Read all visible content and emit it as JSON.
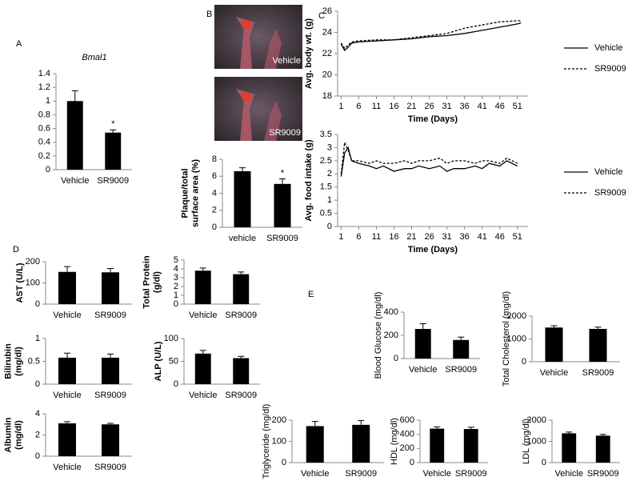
{
  "chart_data": [
    {
      "type": "bar",
      "panel": "A",
      "title": "Bmal1",
      "categories": [
        "Vehicle",
        "SR9009"
      ],
      "values": [
        1.0,
        0.54
      ],
      "errors": [
        0.15,
        0.04
      ],
      "significance": [
        null,
        "*"
      ],
      "color": "#000000",
      "ylim": [
        0,
        1.4
      ],
      "yticks": [
        0,
        0.2,
        0.4,
        0.6,
        0.8,
        1,
        1.2,
        1.4
      ]
    },
    {
      "type": "bar",
      "panel": "B",
      "image_labels": [
        "Vehicle",
        "SR9009"
      ],
      "ylabel": [
        "Plaque/total",
        "surface area (%)"
      ],
      "categories": [
        "vehicle",
        "SR9009"
      ],
      "values": [
        6.6,
        5.1
      ],
      "errors": [
        0.4,
        0.6
      ],
      "significance": [
        null,
        "*"
      ],
      "color": "#000000",
      "ylim": [
        0,
        8
      ],
      "yticks": [
        0,
        2,
        4,
        6,
        8
      ]
    },
    {
      "type": "line",
      "panel": "C",
      "ylabel": "Avg. body wt. (g)",
      "xlabel": "Time (Days)",
      "x": [
        1,
        2,
        3,
        4,
        6,
        11,
        16,
        21,
        26,
        31,
        36,
        41,
        46,
        51,
        52
      ],
      "xlim": [
        0,
        54
      ],
      "xticks": [
        1,
        6,
        11,
        16,
        21,
        26,
        31,
        36,
        41,
        46,
        51
      ],
      "ylim": [
        18,
        26
      ],
      "yticks": [
        18,
        20,
        22,
        24,
        26
      ],
      "series": [
        {
          "name": "Vehicle",
          "color": "#000000",
          "dash": false,
          "values": [
            22.9,
            22.3,
            22.6,
            23.0,
            23.1,
            23.2,
            23.3,
            23.4,
            23.6,
            23.7,
            23.9,
            24.2,
            24.5,
            24.8,
            24.9
          ]
        },
        {
          "name": "SR9009",
          "color": "#000000",
          "dash": true,
          "values": [
            23.0,
            22.5,
            22.8,
            23.1,
            23.2,
            23.3,
            23.3,
            23.5,
            23.7,
            23.9,
            24.4,
            24.7,
            25.0,
            25.1,
            25.1
          ]
        }
      ]
    },
    {
      "type": "line",
      "ylabel": "Avg. food intake (g)",
      "xlabel": "Time (Days)",
      "x": [
        1,
        2,
        3,
        4,
        6,
        9,
        11,
        13,
        16,
        19,
        21,
        23,
        26,
        29,
        31,
        33,
        36,
        39,
        41,
        43,
        46,
        48,
        51
      ],
      "xlim": [
        0,
        54
      ],
      "xticks": [
        1,
        6,
        11,
        16,
        21,
        26,
        31,
        36,
        41,
        46,
        51
      ],
      "ylim": [
        0,
        3.5
      ],
      "yticks": [
        0,
        0.5,
        1,
        1.5,
        2,
        2.5,
        3,
        3.5
      ],
      "series": [
        {
          "name": "Vehicle",
          "color": "#000000",
          "dash": false,
          "values": [
            1.9,
            2.8,
            3.0,
            2.5,
            2.4,
            2.3,
            2.2,
            2.3,
            2.1,
            2.2,
            2.2,
            2.3,
            2.2,
            2.3,
            2.1,
            2.2,
            2.2,
            2.3,
            2.2,
            2.4,
            2.3,
            2.5,
            2.3
          ]
        },
        {
          "name": "SR9009",
          "color": "#000000",
          "dash": true,
          "values": [
            2.0,
            3.2,
            2.9,
            2.5,
            2.5,
            2.4,
            2.5,
            2.4,
            2.4,
            2.5,
            2.4,
            2.5,
            2.5,
            2.6,
            2.4,
            2.5,
            2.5,
            2.4,
            2.5,
            2.5,
            2.4,
            2.6,
            2.4
          ]
        }
      ]
    },
    {
      "type": "bar",
      "panel": "D",
      "ylabel": "AST (U/L)",
      "categories": [
        "Vehicle",
        "SR9009"
      ],
      "values": [
        152,
        150
      ],
      "errors": [
        25,
        18
      ],
      "color": "#000000",
      "ylim": [
        0,
        200
      ],
      "yticks": [
        0,
        100,
        200
      ]
    },
    {
      "type": "bar",
      "ylabel": [
        "Total Protein",
        "(g/dl)"
      ],
      "categories": [
        "Vehicle",
        "SR9009"
      ],
      "values": [
        3.8,
        3.4
      ],
      "errors": [
        0.3,
        0.25
      ],
      "color": "#000000",
      "ylim": [
        0,
        5
      ],
      "yticks": [
        0,
        1,
        2,
        3,
        4,
        5
      ]
    },
    {
      "type": "bar",
      "ylabel": [
        "Bilirubin",
        "(mg/dl)"
      ],
      "categories": [
        "Vehicle",
        "SR9009"
      ],
      "values": [
        0.58,
        0.58
      ],
      "errors": [
        0.1,
        0.08
      ],
      "color": "#000000",
      "ylim": [
        0,
        1
      ],
      "yticks": [
        0,
        0.5,
        1
      ]
    },
    {
      "type": "bar",
      "ylabel": "ALP (U/L)",
      "categories": [
        "Vehicle",
        "SR9009"
      ],
      "values": [
        67,
        57
      ],
      "errors": [
        7,
        4
      ],
      "color": "#000000",
      "ylim": [
        0,
        100
      ],
      "yticks": [
        0,
        50,
        100
      ]
    },
    {
      "type": "bar",
      "ylabel": [
        "Albumin",
        "(mg/dl)"
      ],
      "categories": [
        "Vehicle",
        "SR9009"
      ],
      "values": [
        3.1,
        3.0
      ],
      "errors": [
        0.15,
        0.1
      ],
      "color": "#000000",
      "ylim": [
        0,
        4
      ],
      "yticks": [
        0,
        2,
        4
      ]
    },
    {
      "type": "bar",
      "panel": "E",
      "ylabel": "Blood Glucose (mg/dl)",
      "categories": [
        "Vehicle",
        "SR9009"
      ],
      "values": [
        255,
        160
      ],
      "errors": [
        45,
        25
      ],
      "color": "#000000",
      "ylim": [
        0,
        400
      ],
      "yticks": [
        0,
        200,
        400
      ]
    },
    {
      "type": "bar",
      "ylabel": "Total Cholesterol (mg/dl)",
      "categories": [
        "Vehicle",
        "SR9009"
      ],
      "values": [
        1500,
        1440
      ],
      "errors": [
        80,
        80
      ],
      "color": "#000000",
      "ylim": [
        0,
        2000
      ],
      "yticks": [
        0,
        1000,
        2000
      ]
    },
    {
      "type": "bar",
      "ylabel": "Triglyceride (mg/dl)",
      "categories": [
        "Vehicle",
        "SR9009"
      ],
      "values": [
        172,
        178
      ],
      "errors": [
        22,
        20
      ],
      "color": "#000000",
      "ylim": [
        0,
        200
      ],
      "yticks": [
        0,
        100,
        200
      ]
    },
    {
      "type": "bar",
      "ylabel": "HDL (mg/dl)",
      "categories": [
        "Vehicle",
        "SR9009"
      ],
      "values": [
        480,
        475
      ],
      "errors": [
        25,
        25
      ],
      "color": "#000000",
      "ylim": [
        0,
        600
      ],
      "yticks": [
        0,
        200,
        400,
        600
      ]
    },
    {
      "type": "bar",
      "ylabel": "LDL (mg/dl)",
      "categories": [
        "Vehicle",
        "SR9009"
      ],
      "values": [
        1380,
        1270
      ],
      "errors": [
        60,
        60
      ],
      "color": "#000000",
      "ylim": [
        0,
        2000
      ],
      "yticks": [
        0,
        1000,
        2000
      ]
    }
  ]
}
